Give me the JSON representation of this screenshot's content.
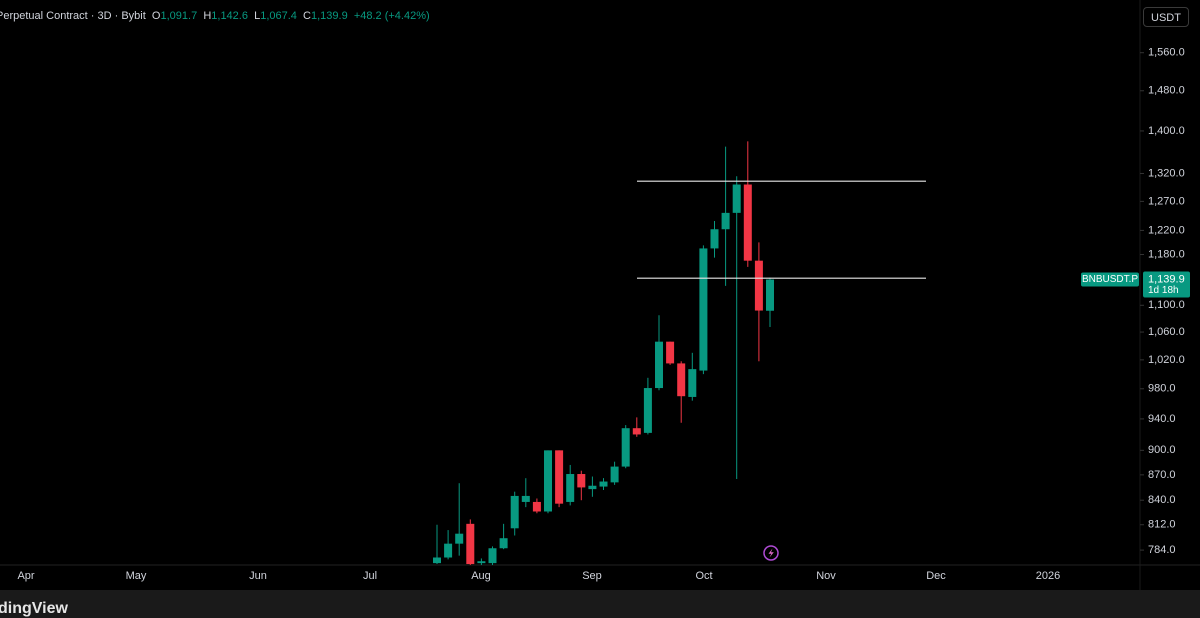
{
  "header": {
    "symbol": "Perpetual Contract · 3D · Bybit",
    "o_key": "O",
    "o": "1,091.7",
    "h_key": "H",
    "h": "1,142.6",
    "l_key": "L",
    "l": "1,067.4",
    "c_key": "C",
    "c": "1,139.9",
    "change": "+48.2 (+4.42%)"
  },
  "currency": "USDT",
  "brand": "dingView",
  "chart_data": {
    "type": "candlestick",
    "symbol_tag": "BNBUSDT.P",
    "last_price_label": "1,139.9",
    "countdown": "1d 18h",
    "open": [
      770,
      776,
      791,
      813,
      770,
      770,
      786,
      808,
      838,
      838,
      827,
      900,
      838,
      871,
      853,
      856,
      861,
      880,
      928,
      922,
      981,
      1046,
      1015,
      969,
      1005,
      1190,
      1222,
      1250,
      1300,
      1170,
      1091.7
    ],
    "high": [
      812,
      806,
      860,
      818,
      775,
      788,
      813,
      850,
      866,
      842,
      900,
      900,
      882,
      875,
      868,
      866,
      886,
      932,
      942,
      995,
      1085,
      1046,
      1018,
      1030,
      1195,
      1236,
      1370,
      1315,
      1380,
      1200,
      1142.6
    ],
    "low": [
      769,
      774,
      778,
      768,
      768,
      768,
      785,
      800,
      832,
      825,
      825,
      832,
      834,
      840,
      844,
      852,
      858,
      878,
      917,
      920,
      978,
      1013,
      935,
      964,
      1000,
      1175,
      1130,
      865,
      1160,
      1018,
      1067.4
    ],
    "close": [
      776,
      791,
      802,
      769,
      772,
      786,
      797,
      845,
      845,
      827,
      900,
      836,
      871,
      855,
      857,
      862,
      880,
      928,
      920,
      981,
      1046,
      1015,
      970,
      1007,
      1190,
      1222,
      1250,
      1300,
      1170,
      1092,
      1139.9
    ],
    "up_color": "#089981",
    "down_color": "#f23645",
    "levels": [
      1306,
      1142
    ],
    "log_scale": true,
    "ylim": [
      768,
      1678
    ],
    "yticks": [
      {
        "value": 784,
        "label": "784.0"
      },
      {
        "value": 812,
        "label": "812.0"
      },
      {
        "value": 840,
        "label": "840.0"
      },
      {
        "value": 870,
        "label": "870.0"
      },
      {
        "value": 900,
        "label": "900.0"
      },
      {
        "value": 940,
        "label": "940.0"
      },
      {
        "value": 980,
        "label": "980.0"
      },
      {
        "value": 1020,
        "label": "1,020.0"
      },
      {
        "value": 1060,
        "label": "1,060.0"
      },
      {
        "value": 1100,
        "label": "1,100.0"
      },
      {
        "value": 1180,
        "label": "1,180.0"
      },
      {
        "value": 1220,
        "label": "1,220.0"
      },
      {
        "value": 1270,
        "label": "1,270.0"
      },
      {
        "value": 1320,
        "label": "1,320.0"
      },
      {
        "value": 1400,
        "label": "1,400.0"
      },
      {
        "value": 1480,
        "label": "1,480.0"
      },
      {
        "value": 1560,
        "label": "1,560.0"
      }
    ],
    "xtick_labels": [
      "Apr",
      "May",
      "Jun",
      "Jul",
      "Aug",
      "Sep",
      "Oct",
      "Nov",
      "Dec",
      "2026"
    ]
  }
}
